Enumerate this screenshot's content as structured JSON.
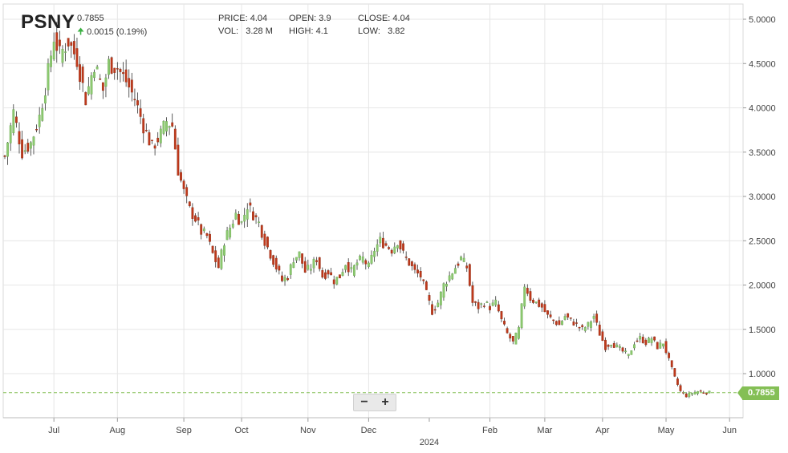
{
  "header": {
    "ticker": "PSNY",
    "price": "0.7855",
    "change": "0.0015 (0.19%)",
    "change_icon": "up-arrow-icon",
    "price_label": "PRICE:",
    "price_value": "4.04",
    "open_label": "OPEN:",
    "open_value": "3.9",
    "close_label": "CLOSE:",
    "close_value": "4.04",
    "vol_label": "VOL:",
    "vol_value": "3.28 M",
    "high_label": "HIGH:",
    "high_value": "4.1",
    "low_label": "LOW:",
    "low_value": "3.82"
  },
  "controls": {
    "zoom_out": "−",
    "zoom_in": "+"
  },
  "last_price_tag": "0.7855",
  "colors": {
    "up": "#8cc970",
    "down": "#c0391b",
    "grid": "#e6e6e6",
    "tag": "#84bf55"
  },
  "chart_data": {
    "type": "candlestick",
    "ylim": [
      0.5,
      5.1
    ],
    "y_ticks": [
      "1.0000",
      "1.5000",
      "2.0000",
      "2.5000",
      "3.0000",
      "3.5000",
      "4.0000",
      "4.5000",
      "5.0000"
    ],
    "x_ticks": [
      {
        "label": "Jul",
        "t": 17
      },
      {
        "label": "Aug",
        "t": 39
      },
      {
        "label": "Sep",
        "t": 62
      },
      {
        "label": "Oct",
        "t": 82
      },
      {
        "label": "Nov",
        "t": 105
      },
      {
        "label": "Dec",
        "t": 126
      },
      {
        "label": "2024",
        "t": 147
      },
      {
        "label": "Feb",
        "t": 168
      },
      {
        "label": "Mar",
        "t": 187
      },
      {
        "label": "Apr",
        "t": 207
      },
      {
        "label": "May",
        "t": 229
      },
      {
        "label": "Jun",
        "t": 251
      }
    ],
    "last_price": 0.7855,
    "close_anchors": [
      [
        0,
        3.45
      ],
      [
        3,
        3.95
      ],
      [
        6,
        3.5
      ],
      [
        9,
        3.6
      ],
      [
        12,
        3.9
      ],
      [
        15,
        4.4
      ],
      [
        17,
        4.8
      ],
      [
        19,
        4.6
      ],
      [
        22,
        4.75
      ],
      [
        25,
        4.55
      ],
      [
        28,
        4.1
      ],
      [
        31,
        4.5
      ],
      [
        34,
        4.2
      ],
      [
        36,
        4.5
      ],
      [
        39,
        4.45
      ],
      [
        42,
        4.3
      ],
      [
        45,
        4.1
      ],
      [
        48,
        3.8
      ],
      [
        51,
        3.55
      ],
      [
        54,
        3.7
      ],
      [
        56,
        3.85
      ],
      [
        58,
        3.8
      ],
      [
        60,
        3.3
      ],
      [
        62,
        3.05
      ],
      [
        64,
        2.85
      ],
      [
        66,
        2.75
      ],
      [
        68,
        2.6
      ],
      [
        70,
        2.55
      ],
      [
        72,
        2.35
      ],
      [
        74,
        2.2
      ],
      [
        76,
        2.5
      ],
      [
        78,
        2.65
      ],
      [
        80,
        2.8
      ],
      [
        82,
        2.7
      ],
      [
        84,
        2.9
      ],
      [
        86,
        2.8
      ],
      [
        88,
        2.7
      ],
      [
        90,
        2.5
      ],
      [
        92,
        2.35
      ],
      [
        94,
        2.2
      ],
      [
        96,
        2.05
      ],
      [
        98,
        2.1
      ],
      [
        100,
        2.3
      ],
      [
        102,
        2.35
      ],
      [
        104,
        2.15
      ],
      [
        106,
        2.2
      ],
      [
        108,
        2.3
      ],
      [
        110,
        2.1
      ],
      [
        112,
        2.15
      ],
      [
        114,
        2.05
      ],
      [
        116,
        2.1
      ],
      [
        118,
        2.25
      ],
      [
        120,
        2.15
      ],
      [
        122,
        2.25
      ],
      [
        124,
        2.3
      ],
      [
        126,
        2.2
      ],
      [
        128,
        2.4
      ],
      [
        130,
        2.5
      ],
      [
        132,
        2.45
      ],
      [
        134,
        2.4
      ],
      [
        136,
        2.5
      ],
      [
        138,
        2.35
      ],
      [
        140,
        2.25
      ],
      [
        142,
        2.15
      ],
      [
        144,
        2.1
      ],
      [
        146,
        1.9
      ],
      [
        148,
        1.7
      ],
      [
        150,
        1.8
      ],
      [
        152,
        2.0
      ],
      [
        154,
        2.1
      ],
      [
        156,
        2.2
      ],
      [
        158,
        2.3
      ],
      [
        160,
        2.2
      ],
      [
        162,
        1.8
      ],
      [
        164,
        1.75
      ],
      [
        166,
        1.8
      ],
      [
        168,
        1.75
      ],
      [
        170,
        1.8
      ],
      [
        172,
        1.6
      ],
      [
        174,
        1.45
      ],
      [
        176,
        1.35
      ],
      [
        178,
        1.5
      ],
      [
        180,
        2.0
      ],
      [
        182,
        1.85
      ],
      [
        184,
        1.8
      ],
      [
        186,
        1.75
      ],
      [
        188,
        1.65
      ],
      [
        190,
        1.6
      ],
      [
        192,
        1.55
      ],
      [
        194,
        1.65
      ],
      [
        196,
        1.6
      ],
      [
        198,
        1.55
      ],
      [
        200,
        1.5
      ],
      [
        202,
        1.55
      ],
      [
        204,
        1.65
      ],
      [
        206,
        1.45
      ],
      [
        208,
        1.3
      ],
      [
        210,
        1.35
      ],
      [
        212,
        1.3
      ],
      [
        214,
        1.25
      ],
      [
        216,
        1.2
      ],
      [
        218,
        1.35
      ],
      [
        220,
        1.4
      ],
      [
        222,
        1.35
      ],
      [
        224,
        1.4
      ],
      [
        226,
        1.3
      ],
      [
        228,
        1.35
      ],
      [
        230,
        1.15
      ],
      [
        232,
        0.95
      ],
      [
        234,
        0.8
      ],
      [
        236,
        0.75
      ],
      [
        238,
        0.78
      ],
      [
        240,
        0.8
      ],
      [
        242,
        0.79
      ],
      [
        244,
        0.7855
      ]
    ]
  }
}
